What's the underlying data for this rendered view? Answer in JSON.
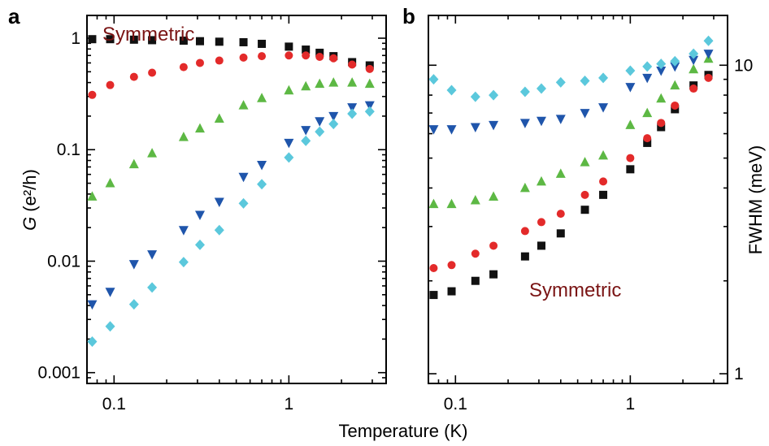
{
  "figure": {
    "xlabel": "Temperature (K)"
  },
  "chart_data": [
    {
      "type": "scatter",
      "panel": "a",
      "annotation": "Symmetric",
      "ylabel_main": "G",
      "ylabel_unit": "(e²/h)",
      "x_scale": "log",
      "y_scale": "log",
      "xlim": [
        0.07,
        3.6
      ],
      "ylim": [
        0.0008,
        1.6
      ],
      "x_ticks": [
        {
          "value": 0.1,
          "label": "0.1"
        },
        {
          "value": 1,
          "label": "1"
        }
      ],
      "y_ticks": [
        {
          "value": 1,
          "label": "1"
        },
        {
          "value": 0.1,
          "label": "0.1"
        },
        {
          "value": 0.01,
          "label": "0.01"
        },
        {
          "value": 0.001,
          "label": "0.001"
        }
      ],
      "series": [
        {
          "marker": "square",
          "color": "#111111",
          "x": [
            0.075,
            0.095,
            0.13,
            0.165,
            0.25,
            0.31,
            0.4,
            0.55,
            0.7,
            1.0,
            1.25,
            1.5,
            1.8,
            2.3,
            2.9
          ],
          "y": [
            0.98,
            0.98,
            0.97,
            0.96,
            0.95,
            0.94,
            0.93,
            0.92,
            0.89,
            0.84,
            0.79,
            0.74,
            0.69,
            0.61,
            0.57
          ]
        },
        {
          "marker": "circle",
          "color": "#e32a2a",
          "x": [
            0.075,
            0.095,
            0.13,
            0.165,
            0.25,
            0.31,
            0.4,
            0.55,
            0.7,
            1.0,
            1.25,
            1.5,
            1.8,
            2.3,
            2.9
          ],
          "y": [
            0.31,
            0.38,
            0.45,
            0.49,
            0.55,
            0.6,
            0.63,
            0.67,
            0.69,
            0.7,
            0.7,
            0.68,
            0.66,
            0.58,
            0.53
          ]
        },
        {
          "marker": "triangle-up",
          "color": "#5db844",
          "x": [
            0.075,
            0.095,
            0.13,
            0.165,
            0.25,
            0.31,
            0.4,
            0.55,
            0.7,
            1.0,
            1.25,
            1.5,
            1.8,
            2.3,
            2.9
          ],
          "y": [
            0.038,
            0.05,
            0.074,
            0.093,
            0.13,
            0.155,
            0.19,
            0.25,
            0.29,
            0.34,
            0.37,
            0.39,
            0.4,
            0.4,
            0.39
          ]
        },
        {
          "marker": "triangle-down",
          "color": "#1f55ab",
          "x": [
            0.075,
            0.095,
            0.13,
            0.165,
            0.25,
            0.31,
            0.4,
            0.55,
            0.7,
            1.0,
            1.25,
            1.5,
            1.8,
            2.3,
            2.9
          ],
          "y": [
            0.0041,
            0.0053,
            0.0094,
            0.0115,
            0.019,
            0.026,
            0.034,
            0.057,
            0.073,
            0.115,
            0.15,
            0.18,
            0.2,
            0.24,
            0.25
          ]
        },
        {
          "marker": "diamond",
          "color": "#5bc8dc",
          "x": [
            0.075,
            0.095,
            0.13,
            0.165,
            0.25,
            0.31,
            0.4,
            0.55,
            0.7,
            1.0,
            1.25,
            1.5,
            1.8,
            2.3,
            2.9
          ],
          "y": [
            0.0019,
            0.0026,
            0.0041,
            0.0058,
            0.0098,
            0.014,
            0.019,
            0.033,
            0.049,
            0.085,
            0.12,
            0.145,
            0.17,
            0.21,
            0.22
          ]
        }
      ]
    },
    {
      "type": "scatter",
      "panel": "b",
      "annotation": "Symmetric",
      "ylabel": "FWHM (meV)",
      "y_axis_side": "right",
      "x_scale": "log",
      "y_scale": "log",
      "xlim": [
        0.07,
        3.6
      ],
      "ylim": [
        0.93,
        14.5
      ],
      "x_ticks": [
        {
          "value": 0.1,
          "label": "0.1"
        },
        {
          "value": 1,
          "label": "1"
        }
      ],
      "y_ticks": [
        {
          "value": 10,
          "label": "10"
        },
        {
          "value": 1,
          "label": "1"
        }
      ],
      "series": [
        {
          "marker": "square",
          "color": "#111111",
          "x": [
            0.075,
            0.095,
            0.13,
            0.165,
            0.25,
            0.31,
            0.4,
            0.55,
            0.7,
            1.0,
            1.25,
            1.5,
            1.8,
            2.3,
            2.8
          ],
          "y": [
            1.8,
            1.85,
            2.0,
            2.1,
            2.4,
            2.6,
            2.85,
            3.4,
            3.8,
            4.6,
            5.6,
            6.3,
            7.2,
            8.6,
            9.3
          ]
        },
        {
          "marker": "circle",
          "color": "#e32a2a",
          "x": [
            0.075,
            0.095,
            0.13,
            0.165,
            0.25,
            0.31,
            0.4,
            0.55,
            0.7,
            1.0,
            1.25,
            1.5,
            1.8,
            2.3,
            2.8
          ],
          "y": [
            2.2,
            2.25,
            2.45,
            2.6,
            2.9,
            3.1,
            3.3,
            3.8,
            4.2,
            5.0,
            5.8,
            6.5,
            7.4,
            8.4,
            9.1
          ]
        },
        {
          "marker": "triangle-up",
          "color": "#5db844",
          "x": [
            0.075,
            0.095,
            0.13,
            0.165,
            0.25,
            0.31,
            0.4,
            0.55,
            0.7,
            1.0,
            1.25,
            1.5,
            1.8,
            2.3,
            2.8
          ],
          "y": [
            3.55,
            3.55,
            3.65,
            3.75,
            4.0,
            4.2,
            4.45,
            4.85,
            5.1,
            6.4,
            7.0,
            7.8,
            8.6,
            9.7,
            10.5
          ]
        },
        {
          "marker": "triangle-down",
          "color": "#1f55ab",
          "x": [
            0.075,
            0.095,
            0.13,
            0.165,
            0.25,
            0.31,
            0.4,
            0.55,
            0.7,
            1.0,
            1.25,
            1.5,
            1.8,
            2.3,
            2.8
          ],
          "y": [
            6.2,
            6.2,
            6.3,
            6.4,
            6.5,
            6.6,
            6.7,
            7.0,
            7.3,
            8.5,
            9.1,
            9.6,
            9.9,
            10.4,
            10.9
          ]
        },
        {
          "marker": "diamond",
          "color": "#5bc8dc",
          "x": [
            0.075,
            0.095,
            0.13,
            0.165,
            0.25,
            0.31,
            0.4,
            0.55,
            0.7,
            1.0,
            1.25,
            1.5,
            1.8,
            2.3,
            2.8
          ],
          "y": [
            9.0,
            8.3,
            7.9,
            8.0,
            8.2,
            8.4,
            8.8,
            8.9,
            9.1,
            9.6,
            9.9,
            10.1,
            10.3,
            10.9,
            12.0
          ]
        }
      ]
    }
  ]
}
